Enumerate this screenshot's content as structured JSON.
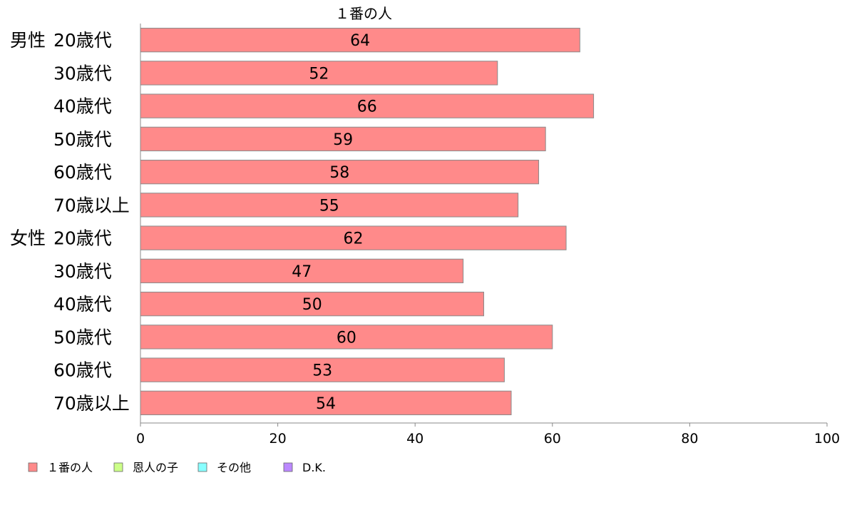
{
  "chart_data": {
    "type": "bar",
    "orientation": "horizontal",
    "title": "",
    "xlabel": "",
    "ylabel": "",
    "xlim": [
      0,
      100
    ],
    "x_ticks": [
      "0",
      "20",
      "40",
      "60",
      "80",
      "100"
    ],
    "grid": false,
    "series_title": "１番の人",
    "categories": [
      {
        "group": "男性",
        "label": "20歳代"
      },
      {
        "group": "",
        "label": "30歳代"
      },
      {
        "group": "",
        "label": "40歳代"
      },
      {
        "group": "",
        "label": "50歳代"
      },
      {
        "group": "",
        "label": "60歳代"
      },
      {
        "group": "",
        "label": "70歳以上"
      },
      {
        "group": "女性",
        "label": "20歳代"
      },
      {
        "group": "",
        "label": "30歳代"
      },
      {
        "group": "",
        "label": "40歳代"
      },
      {
        "group": "",
        "label": "50歳代"
      },
      {
        "group": "",
        "label": "60歳代"
      },
      {
        "group": "",
        "label": "70歳以上"
      }
    ],
    "series": [
      {
        "name": "１番の人",
        "color": "#ff8a8a",
        "values": [
          64,
          52,
          66,
          59,
          58,
          55,
          62,
          47,
          50,
          60,
          53,
          54
        ]
      }
    ],
    "legend": {
      "placement": "bottom-left",
      "items": [
        {
          "label": "１番の人",
          "color": "#ff8a8a"
        },
        {
          "label": "恩人の子",
          "color": "#ccff88"
        },
        {
          "label": "その他",
          "color": "#88ffff"
        },
        {
          "label": "D.K.",
          "color": "#bb88ff"
        }
      ]
    }
  }
}
